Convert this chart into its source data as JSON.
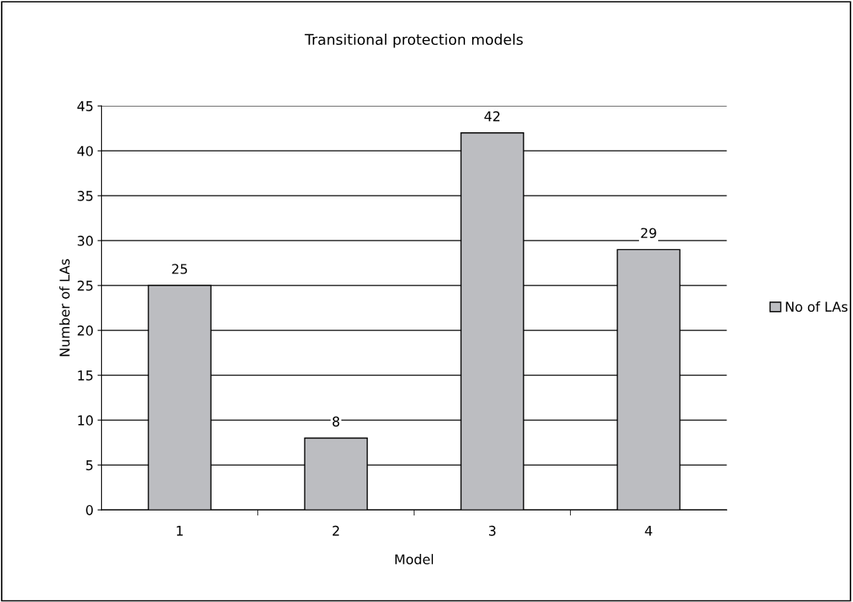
{
  "chart_data": {
    "type": "bar",
    "title": "Transitional protection models",
    "xlabel": "Model",
    "ylabel": "Number of LAs",
    "categories": [
      "1",
      "2",
      "3",
      "4"
    ],
    "series": [
      {
        "name": "No of LAs",
        "color": "#bcbdc1",
        "values": [
          25,
          8,
          42,
          29
        ]
      }
    ],
    "ylim": [
      0,
      45
    ],
    "yticks": [
      0,
      5,
      10,
      15,
      20,
      25,
      30,
      35,
      40,
      45
    ],
    "grid": "y",
    "legend": "right",
    "data_labels": true
  }
}
